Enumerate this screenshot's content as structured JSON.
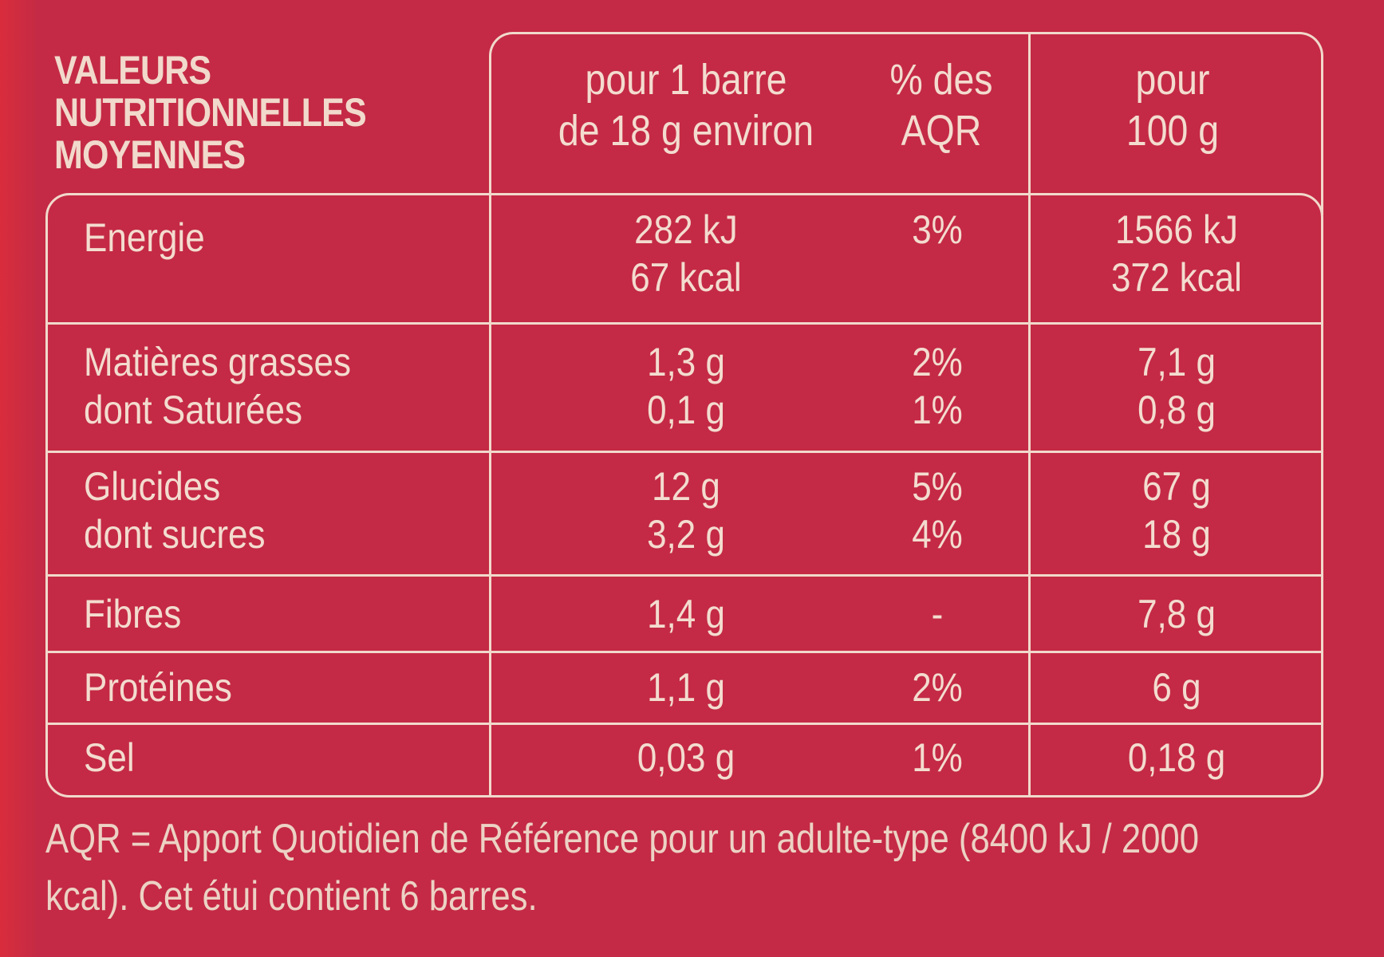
{
  "table_title": "VALEURS\nNUTRITIONNELLES\nMOYENNES",
  "columns": {
    "per_bar": "pour 1 barre\nde 18 g environ",
    "percent_aqr": "% des\nAQR",
    "per_100g": "pour\n100 g"
  },
  "rows": [
    {
      "label": "Energie",
      "per_bar": "282 kJ\n67 kcal",
      "percent": "3%",
      "per_100g": "1566 kJ\n372 kcal"
    },
    {
      "label": "Matières grasses\ndont Saturées",
      "per_bar": "1,3 g\n0,1 g",
      "percent": "2%\n1%",
      "per_100g": "7,1 g\n0,8 g"
    },
    {
      "label": "Glucides\ndont sucres",
      "per_bar": "12 g\n3,2 g",
      "percent": "5%\n4%",
      "per_100g": "67 g\n18 g"
    },
    {
      "label": "Fibres",
      "per_bar": "1,4 g",
      "percent": "-",
      "per_100g": "7,8 g"
    },
    {
      "label": "Protéines",
      "per_bar": "1,1 g",
      "percent": "2%",
      "per_100g": "6 g"
    },
    {
      "label": "Sel",
      "per_bar": "0,03 g",
      "percent": "1%",
      "per_100g": "0,18 g"
    }
  ],
  "footnote": "AQR = Apport Quotidien de Référence pour un adulte-type (8400 kJ / 2000 kcal). Cet étui contient 6 barres."
}
